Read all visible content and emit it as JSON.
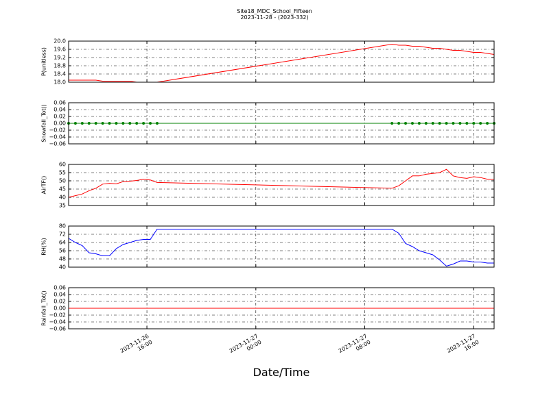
{
  "title": "Site18_MDC_School_Fifteen",
  "subtitle": "2023-11-28 - (2023-332)",
  "xlabel": "Date/Time",
  "x": [
    "2023-11-26 10:15",
    "2023-11-26 10:45",
    "2023-11-26 11:15",
    "2023-11-26 11:45",
    "2023-11-26 12:15",
    "2023-11-26 12:45",
    "2023-11-26 13:15",
    "2023-11-26 13:45",
    "2023-11-26 14:15",
    "2023-11-26 14:45",
    "2023-11-26 15:15",
    "2023-11-26 15:45",
    "2023-11-26 16:15",
    "2023-11-26 16:45",
    "2023-11-27 10:00",
    "2023-11-27 10:30",
    "2023-11-27 11:00",
    "2023-11-27 11:30",
    "2023-11-27 12:00",
    "2023-11-27 12:30",
    "2023-11-27 13:00",
    "2023-11-27 13:30",
    "2023-11-27 14:00",
    "2023-11-27 14:30",
    "2023-11-27 15:00",
    "2023-11-27 15:30",
    "2023-11-27 16:00",
    "2023-11-27 16:30",
    "2023-11-27 17:00",
    "2023-11-27 17:30"
  ],
  "xlim": [
    "2023-11-26 10:15",
    "2023-11-27 17:30"
  ],
  "xticks": [
    {
      "value": "2023-11-26 16:00",
      "label": "2023-11-26\n16:00"
    },
    {
      "value": "2023-11-27 00:00",
      "label": "2023-11-27\n00:00"
    },
    {
      "value": "2023-11-27 08:00",
      "label": "2023-11-27\n08:00"
    },
    {
      "value": "2023-11-27 16:00",
      "label": "2023-11-27\n16:00"
    }
  ],
  "grid": true,
  "chart_data": [
    {
      "type": "line",
      "ylabel": "P(unitless)",
      "ylim": [
        18.0,
        20.0
      ],
      "yticks": [
        {
          "value": 18.0,
          "label": "18.0"
        },
        {
          "value": 18.4,
          "label": "18.4"
        },
        {
          "value": 18.8,
          "label": "18.8"
        },
        {
          "value": 19.2,
          "label": "19.2"
        },
        {
          "value": 19.6,
          "label": "19.6"
        },
        {
          "value": 20.0,
          "label": "20.0"
        }
      ],
      "series": [
        {
          "color": "#ff0000",
          "marker": false,
          "values": [
            18.1,
            18.1,
            18.1,
            18.1,
            18.1,
            18.05,
            18.05,
            18.05,
            18.05,
            18.05,
            18.0,
            18.0,
            18.0,
            18.0,
            19.85,
            19.8,
            19.8,
            19.75,
            19.75,
            19.7,
            19.65,
            19.65,
            19.6,
            19.55,
            19.55,
            19.5,
            19.45,
            19.45,
            19.4,
            19.35
          ]
        }
      ]
    },
    {
      "type": "line",
      "ylabel": "Snowfall_Tot()",
      "ylim": [
        -0.06,
        0.06
      ],
      "yticks": [
        {
          "value": -0.06,
          "label": "−0.06"
        },
        {
          "value": -0.04,
          "label": "−0.04"
        },
        {
          "value": -0.02,
          "label": "−0.02"
        },
        {
          "value": 0,
          "label": "0.00"
        },
        {
          "value": 0.02,
          "label": "0.02"
        },
        {
          "value": 0.04,
          "label": "0.04"
        },
        {
          "value": 0.06,
          "label": "0.06"
        }
      ],
      "series": [
        {
          "color": "#008000",
          "marker": true,
          "values": [
            0,
            0,
            0,
            0,
            0,
            0,
            0,
            0,
            0,
            0,
            0,
            0,
            0,
            0,
            0,
            0,
            0,
            0,
            0,
            0,
            0,
            0,
            0,
            0,
            0,
            0,
            0,
            0,
            0,
            0
          ]
        }
      ]
    },
    {
      "type": "line",
      "ylabel": "AirTF()",
      "ylim": [
        35,
        60
      ],
      "yticks": [
        35,
        40,
        45,
        50,
        55,
        60
      ],
      "series": [
        {
          "color": "#ff0000",
          "marker": false,
          "values": [
            40,
            41,
            42,
            44,
            45.5,
            48,
            48.5,
            48.2,
            49.5,
            49.8,
            50.2,
            51,
            50.5,
            49,
            45.5,
            47,
            50,
            53,
            53,
            54,
            54.5,
            55,
            57,
            53,
            52,
            51.5,
            52.5,
            52,
            51,
            51
          ]
        }
      ]
    },
    {
      "type": "line",
      "ylabel": "RH(%)",
      "ylim": [
        40,
        80
      ],
      "yticks": [
        40,
        48,
        56,
        64,
        72,
        80
      ],
      "series": [
        {
          "color": "#0000ff",
          "marker": false,
          "values": [
            68,
            64,
            61,
            54,
            53,
            51,
            51,
            58,
            62,
            64,
            66,
            67,
            67,
            77,
            77,
            73,
            63,
            60,
            56,
            54,
            52,
            47,
            41,
            43,
            46,
            46,
            45,
            45,
            44,
            44
          ]
        }
      ]
    },
    {
      "type": "line",
      "ylabel": "Rainfall_Tot()",
      "ylim": [
        -0.06,
        0.06
      ],
      "yticks": [
        {
          "value": -0.06,
          "label": "−0.06"
        },
        {
          "value": -0.04,
          "label": "−0.04"
        },
        {
          "value": -0.02,
          "label": "−0.02"
        },
        {
          "value": 0,
          "label": "0.00"
        },
        {
          "value": 0.02,
          "label": "0.02"
        },
        {
          "value": 0.04,
          "label": "0.04"
        },
        {
          "value": 0.06,
          "label": "0.06"
        }
      ],
      "series": [
        {
          "color": "#ff0000",
          "marker": false,
          "values": [
            0,
            0,
            0,
            0,
            0,
            0,
            0,
            0,
            0,
            0,
            0,
            0,
            0,
            0,
            0,
            0,
            0,
            0,
            0,
            0,
            0,
            0,
            0,
            0,
            0,
            0,
            0,
            0,
            0,
            0
          ]
        }
      ]
    }
  ]
}
